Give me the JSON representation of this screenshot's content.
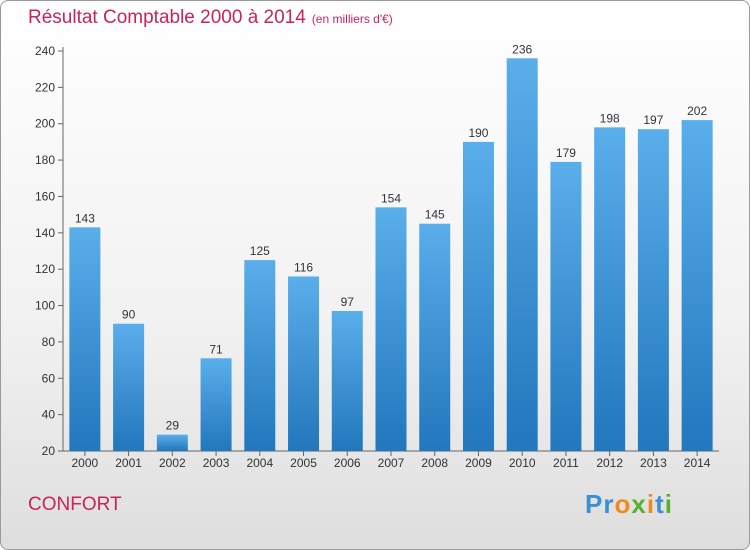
{
  "title": "Résultat Comptable 2000 à 2014",
  "subtitle": "(en milliers d'€)",
  "commune": "CONFORT",
  "logo": {
    "letters": [
      {
        "ch": "P",
        "color": "#3a8fd6"
      },
      {
        "ch": "r",
        "color": "#3a8fd6"
      },
      {
        "ch": "o",
        "color": "#f08a1c"
      },
      {
        "ch": "x",
        "color": "#58b030"
      },
      {
        "ch": "i",
        "color": "#f08a1c"
      },
      {
        "ch": "t",
        "color": "#3a8fd6"
      },
      {
        "ch": "i",
        "color": "#58b030"
      }
    ]
  },
  "colors": {
    "bar": "#3b96dc",
    "bar_dark": "#2277bd",
    "title": "#c8245a"
  },
  "chart_data": {
    "type": "bar",
    "title": "Résultat Comptable 2000 à 2014",
    "subtitle": "(en milliers d'€)",
    "categories": [
      "2000",
      "2001",
      "2002",
      "2003",
      "2004",
      "2005",
      "2006",
      "2007",
      "2008",
      "2009",
      "2010",
      "2011",
      "2012",
      "2013",
      "2014"
    ],
    "values": [
      143,
      90,
      29,
      71,
      125,
      116,
      97,
      154,
      145,
      190,
      236,
      179,
      198,
      197,
      202
    ],
    "ylim": [
      20,
      240
    ],
    "yticks": [
      20,
      40,
      60,
      80,
      100,
      120,
      140,
      160,
      180,
      200,
      220,
      240
    ],
    "grid": false,
    "data_labels": true
  }
}
